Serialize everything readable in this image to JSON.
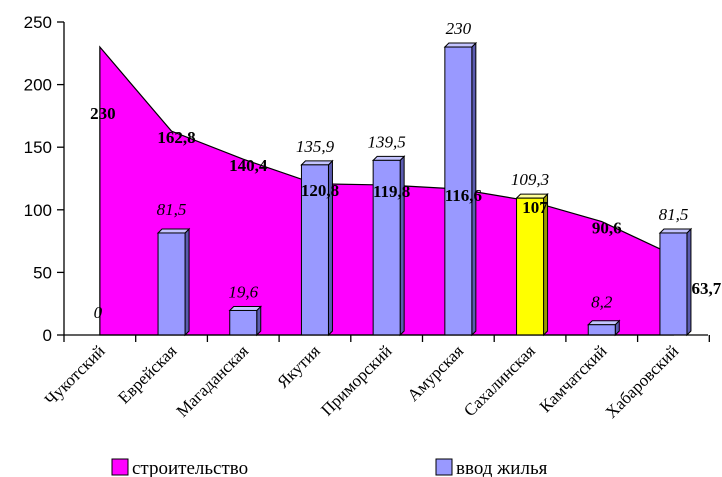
{
  "chart_data": {
    "type": "bar",
    "categories": [
      "Чукотский",
      "Еврейская",
      "Магаданская",
      "Якутия",
      "Приморский",
      "Амурская",
      "Сахалинская",
      "Камчатский",
      "Хабаровский"
    ],
    "series": [
      {
        "name": "строительство",
        "chart_type": "area",
        "values": [
          230,
          162.8,
          140.4,
          120.8,
          119.8,
          116.6,
          107,
          90.6,
          63.7
        ],
        "labels": [
          "230",
          "162,8",
          "140,4",
          "120,8",
          "119,8",
          "116,6",
          "107",
          "90,6",
          "63,7"
        ],
        "color": "#ff00ff"
      },
      {
        "name": "ввод жилья",
        "chart_type": "bar",
        "values": [
          0,
          81.5,
          19.6,
          135.9,
          139.5,
          230,
          109.3,
          8.2,
          81.5
        ],
        "labels": [
          "0",
          "81,5",
          "19,6",
          "135,9",
          "139,5",
          "230",
          "109,3",
          "8,2",
          "81,5"
        ],
        "color": "#9999ff",
        "highlight": {
          "index": 6,
          "color": "#ffff00"
        }
      }
    ],
    "ylim": [
      0,
      250
    ],
    "yticks": [
      "0",
      "50",
      "100",
      "150",
      "200",
      "250"
    ],
    "grid": false,
    "legend_position": "bottom"
  }
}
